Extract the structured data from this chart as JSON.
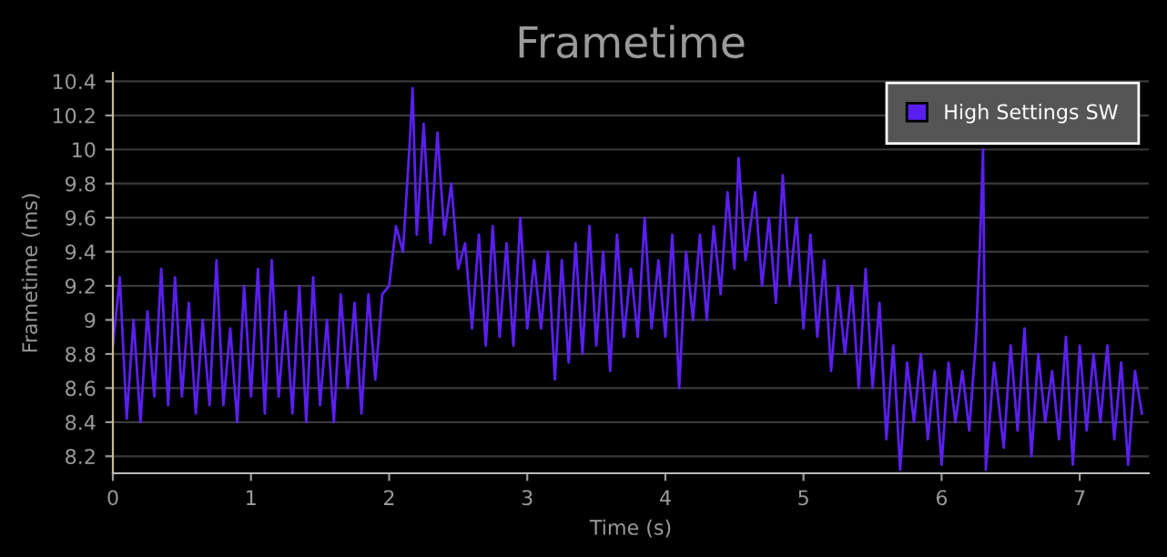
{
  "chart_data": {
    "type": "line",
    "title": "Frametime",
    "xlabel": "Time (s)",
    "ylabel": "Frametime (ms)",
    "x": [
      0.0,
      0.05,
      0.1,
      0.15,
      0.2,
      0.25,
      0.3,
      0.35,
      0.4,
      0.45,
      0.5,
      0.55,
      0.6,
      0.65,
      0.7,
      0.75,
      0.8,
      0.85,
      0.9,
      0.95,
      1.0,
      1.05,
      1.1,
      1.15,
      1.2,
      1.25,
      1.3,
      1.35,
      1.4,
      1.45,
      1.5,
      1.55,
      1.6,
      1.65,
      1.7,
      1.75,
      1.8,
      1.85,
      1.9,
      1.95,
      2.0,
      2.05,
      2.1,
      2.15,
      2.17,
      2.2,
      2.25,
      2.3,
      2.35,
      2.4,
      2.45,
      2.5,
      2.55,
      2.6,
      2.65,
      2.7,
      2.75,
      2.8,
      2.85,
      2.9,
      2.95,
      3.0,
      3.05,
      3.1,
      3.15,
      3.2,
      3.25,
      3.3,
      3.35,
      3.4,
      3.45,
      3.5,
      3.55,
      3.6,
      3.65,
      3.7,
      3.75,
      3.8,
      3.85,
      3.9,
      3.95,
      4.0,
      4.05,
      4.1,
      4.15,
      4.2,
      4.25,
      4.3,
      4.35,
      4.4,
      4.45,
      4.5,
      4.53,
      4.58,
      4.65,
      4.7,
      4.75,
      4.8,
      4.85,
      4.9,
      4.95,
      5.0,
      5.05,
      5.1,
      5.15,
      5.2,
      5.25,
      5.3,
      5.35,
      5.4,
      5.45,
      5.5,
      5.55,
      5.6,
      5.65,
      5.7,
      5.75,
      5.8,
      5.85,
      5.9,
      5.95,
      6.0,
      6.05,
      6.1,
      6.15,
      6.2,
      6.25,
      6.28,
      6.3,
      6.32,
      6.38,
      6.45,
      6.5,
      6.55,
      6.6,
      6.65,
      6.7,
      6.75,
      6.8,
      6.85,
      6.9,
      6.95,
      7.0,
      7.05,
      7.1,
      7.15,
      7.2,
      7.25,
      7.3,
      7.35,
      7.4,
      7.45
    ],
    "series": [
      {
        "name": "High Settings SW",
        "color": "#5a1ff0",
        "values": [
          8.85,
          9.25,
          8.42,
          9.0,
          8.4,
          9.05,
          8.55,
          9.3,
          8.5,
          9.25,
          8.55,
          9.1,
          8.45,
          9.0,
          8.5,
          9.35,
          8.5,
          8.95,
          8.4,
          9.2,
          8.55,
          9.3,
          8.45,
          9.35,
          8.55,
          9.05,
          8.45,
          9.2,
          8.4,
          9.25,
          8.5,
          9.0,
          8.4,
          9.15,
          8.6,
          9.1,
          8.45,
          9.15,
          8.65,
          9.15,
          9.2,
          9.55,
          9.4,
          10.05,
          10.36,
          9.5,
          10.15,
          9.45,
          10.1,
          9.5,
          9.8,
          9.3,
          9.45,
          8.95,
          9.5,
          8.85,
          9.55,
          8.9,
          9.45,
          8.85,
          9.6,
          8.95,
          9.35,
          8.95,
          9.4,
          8.65,
          9.35,
          8.75,
          9.45,
          8.8,
          9.55,
          8.85,
          9.4,
          8.7,
          9.5,
          8.9,
          9.3,
          8.9,
          9.6,
          8.95,
          9.35,
          8.9,
          9.5,
          8.6,
          9.4,
          9.0,
          9.5,
          9.0,
          9.55,
          9.15,
          9.75,
          9.3,
          9.95,
          9.35,
          9.75,
          9.2,
          9.6,
          9.1,
          9.85,
          9.2,
          9.6,
          8.95,
          9.5,
          8.9,
          9.35,
          8.7,
          9.2,
          8.8,
          9.2,
          8.6,
          9.3,
          8.6,
          9.1,
          8.3,
          8.85,
          8.12,
          8.75,
          8.4,
          8.8,
          8.3,
          8.7,
          8.15,
          8.75,
          8.4,
          8.7,
          8.35,
          8.9,
          9.5,
          10.0,
          8.12,
          8.75,
          8.25,
          8.85,
          8.35,
          8.95,
          8.2,
          8.8,
          8.4,
          8.7,
          8.3,
          8.9,
          8.15,
          8.85,
          8.35,
          8.8,
          8.4,
          8.85,
          8.3,
          8.75,
          8.15,
          8.7,
          8.45
        ]
      }
    ],
    "xlim": [
      0,
      7.5
    ],
    "ylim": [
      8.1,
      10.45
    ],
    "xticks": [
      0,
      1,
      2,
      3,
      4,
      5,
      6,
      7
    ],
    "yticks": [
      8.2,
      8.4,
      8.6,
      8.8,
      9,
      9.2,
      9.4,
      9.6,
      9.8,
      10,
      10.2,
      10.4
    ],
    "grid": "y",
    "legend": "top right",
    "marker": "none",
    "line_style": "solid"
  }
}
